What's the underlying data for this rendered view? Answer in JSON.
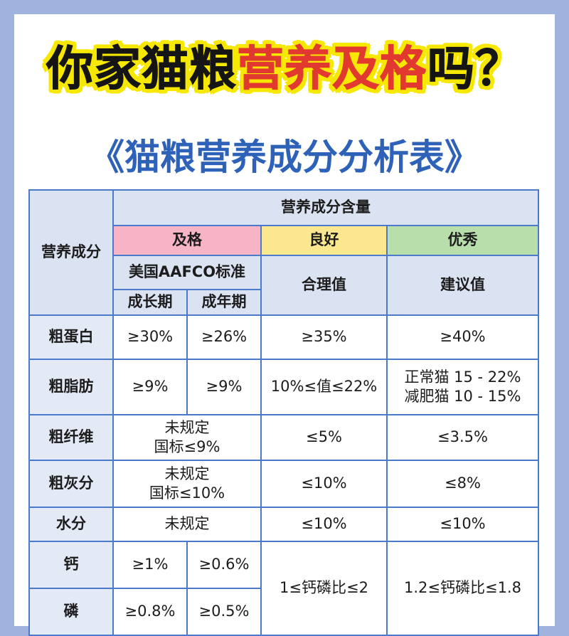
{
  "headline": {
    "black": "你家猫粮",
    "red": "营养及格",
    "tail": "吗？"
  },
  "subheadline": "《猫粮营养成分分析表》",
  "table": {
    "col_nutrient": "营养成分",
    "col_content": "营养成分含量",
    "pass": "及格",
    "good": "良好",
    "excellent": "优秀",
    "aafco": "美国AAFCO标准",
    "reasonable": "合理值",
    "recommended": "建议值",
    "growth": "成长期",
    "adult": "成年期",
    "rows": {
      "protein": {
        "name": "粗蛋白",
        "growth": "≥30%",
        "adult": "≥26%",
        "good": "≥35%",
        "excellent": "≥40%"
      },
      "fat": {
        "name": "粗脂肪",
        "growth": "≥9%",
        "adult": "≥9%",
        "good": "10%≤值≤22%",
        "excellent_1": "正常猫 15 - 22%",
        "excellent_2": "减肥猫 10 - 15%"
      },
      "fiber": {
        "name": "粗纤维",
        "pass_1": "未规定",
        "pass_2": "国标≤9%",
        "good": "≤5%",
        "excellent": "≤3.5%"
      },
      "ash": {
        "name": "粗灰分",
        "pass_1": "未规定",
        "pass_2": "国标≤10%",
        "good": "≤10%",
        "excellent": "≤8%"
      },
      "water": {
        "name": "水分",
        "pass": "未规定",
        "good": "≤10%",
        "excellent": "≤10%"
      },
      "calcium": {
        "name": "钙",
        "growth": "≥1%",
        "adult": "≥0.6%"
      },
      "phosphorus": {
        "name": "磷",
        "growth": "≥0.8%",
        "adult": "≥0.5%"
      },
      "ca_p_good": "1≤钙磷比≤2",
      "ca_p_excellent": "1.2≤钙磷比≤1.8"
    }
  }
}
